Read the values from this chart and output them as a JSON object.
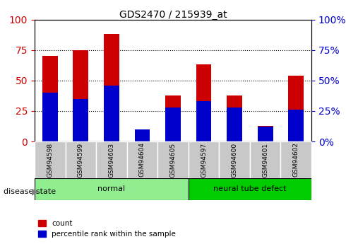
{
  "title": "GDS2470 / 215939_at",
  "samples": [
    "GSM94598",
    "GSM94599",
    "GSM94603",
    "GSM94604",
    "GSM94605",
    "GSM94597",
    "GSM94600",
    "GSM94601",
    "GSM94602"
  ],
  "count_values": [
    70,
    75,
    88,
    10,
    38,
    63,
    38,
    13,
    54
  ],
  "percentile_values": [
    40,
    35,
    46,
    10,
    28,
    33,
    28,
    12,
    26
  ],
  "bar_color_red": "#CC0000",
  "bar_color_blue": "#0000CC",
  "normal_indices": [
    0,
    1,
    2,
    3,
    4
  ],
  "defect_indices": [
    5,
    6,
    7,
    8
  ],
  "normal_label": "normal",
  "defect_label": "neural tube defect",
  "disease_state_label": "disease state",
  "legend_count": "count",
  "legend_percentile": "percentile rank within the sample",
  "ylim": [
    0,
    100
  ],
  "yticks": [
    0,
    25,
    50,
    75,
    100
  ],
  "normal_color": "#90EE90",
  "defect_color": "#00CC00",
  "bar_width": 0.5
}
